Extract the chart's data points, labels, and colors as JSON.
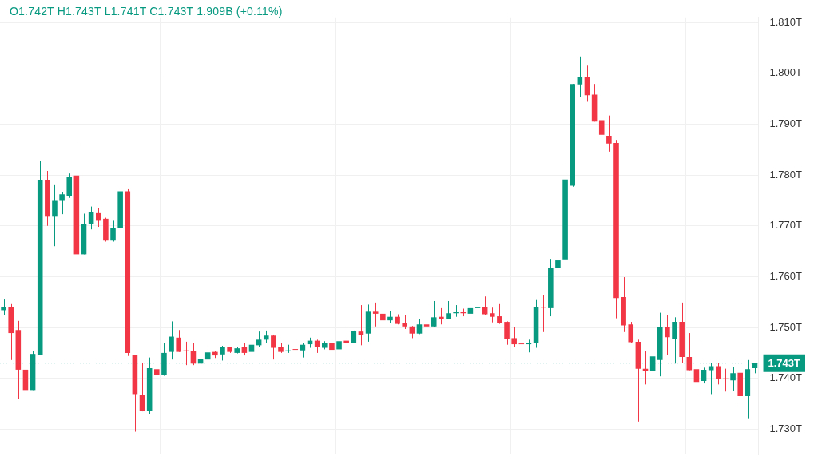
{
  "chart_data": {
    "type": "candlestick",
    "categories": [
      null,
      null,
      null,
      null,
      null,
      null,
      null,
      null,
      null,
      null,
      null,
      null,
      null,
      null,
      null,
      null,
      null,
      null,
      null,
      null,
      null,
      null,
      null,
      null,
      null,
      null,
      null,
      null,
      null,
      null,
      null,
      null,
      null,
      null,
      null,
      null,
      null,
      null,
      null,
      null,
      null,
      null,
      null,
      null,
      null,
      null,
      null,
      null,
      null,
      null,
      null,
      null,
      null,
      null,
      null,
      null,
      null,
      null,
      null,
      null,
      null,
      null,
      null,
      null,
      null,
      null,
      null,
      null,
      null,
      null,
      null,
      null,
      null,
      null,
      null,
      null,
      null,
      null,
      null,
      null,
      null,
      null,
      null,
      null,
      null,
      null,
      null,
      null,
      null,
      null,
      null,
      null,
      null,
      null,
      null,
      null,
      null,
      null,
      null,
      null,
      null,
      null,
      null,
      null
    ],
    "ohlc": [
      [
        1.7534,
        1.7555,
        1.7525,
        1.754
      ],
      [
        1.754,
        1.7546,
        1.7436,
        1.7489
      ],
      [
        1.7495,
        1.7513,
        1.736,
        1.7417
      ],
      [
        1.7417,
        1.7424,
        1.7344,
        1.7377
      ],
      [
        1.7377,
        1.7453,
        1.7377,
        1.7448
      ],
      [
        1.7446,
        1.7828,
        1.7446,
        1.7789
      ],
      [
        1.7789,
        1.7808,
        1.77,
        1.7718
      ],
      [
        1.7718,
        1.778,
        1.766,
        1.7749
      ],
      [
        1.7749,
        1.7767,
        1.7723,
        1.7762
      ],
      [
        1.7758,
        1.7803,
        1.7755,
        1.7797
      ],
      [
        1.7799,
        1.7863,
        1.7631,
        1.7644
      ],
      [
        1.7644,
        1.7724,
        1.7644,
        1.7704
      ],
      [
        1.7703,
        1.7738,
        1.7693,
        1.7727
      ],
      [
        1.7725,
        1.7735,
        1.7698,
        1.771
      ],
      [
        1.7714,
        1.7716,
        1.7669,
        1.7671
      ],
      [
        1.7671,
        1.771,
        1.7669,
        1.7696
      ],
      [
        1.7695,
        1.7771,
        1.7688,
        1.7768
      ],
      [
        1.7768,
        1.7772,
        1.7444,
        1.745
      ],
      [
        1.7446,
        1.7446,
        1.7295,
        1.7369
      ],
      [
        1.7368,
        1.7431,
        1.7335,
        1.7335
      ],
      [
        1.7336,
        1.7441,
        1.7329,
        1.742
      ],
      [
        1.7418,
        1.7426,
        1.7383,
        1.7407
      ],
      [
        1.7407,
        1.747,
        1.7405,
        1.745
      ],
      [
        1.7452,
        1.7512,
        1.7437,
        1.7482
      ],
      [
        1.748,
        1.7495,
        1.7452,
        1.7452
      ],
      [
        1.7455,
        1.7472,
        1.7426,
        1.7453
      ],
      [
        1.7454,
        1.747,
        1.7426,
        1.7429
      ],
      [
        1.7429,
        1.7439,
        1.7407,
        1.7438
      ],
      [
        1.7437,
        1.7456,
        1.7426,
        1.7451
      ],
      [
        1.7452,
        1.7454,
        1.744,
        1.7445
      ],
      [
        1.7447,
        1.7464,
        1.7435,
        1.7461
      ],
      [
        1.7461,
        1.7462,
        1.745,
        1.7452
      ],
      [
        1.745,
        1.7461,
        1.7449,
        1.7459
      ],
      [
        1.7461,
        1.7469,
        1.7445,
        1.745
      ],
      [
        1.7452,
        1.75,
        1.745,
        1.7466
      ],
      [
        1.7465,
        1.7492,
        1.7462,
        1.7476
      ],
      [
        1.7476,
        1.7494,
        1.747,
        1.7484
      ],
      [
        1.7484,
        1.7486,
        1.7437,
        1.746
      ],
      [
        1.7462,
        1.747,
        1.745,
        1.7452
      ],
      [
        1.7453,
        1.7466,
        1.745,
        1.7455
      ],
      [
        1.7457,
        1.7458,
        1.7431,
        1.7456
      ],
      [
        1.7455,
        1.747,
        1.7441,
        1.7466
      ],
      [
        1.7467,
        1.748,
        1.746,
        1.7474
      ],
      [
        1.7474,
        1.7476,
        1.745,
        1.7461
      ],
      [
        1.746,
        1.7473,
        1.7457,
        1.747
      ],
      [
        1.747,
        1.7473,
        1.7453,
        1.7456
      ],
      [
        1.7457,
        1.7474,
        1.7456,
        1.7473
      ],
      [
        1.7474,
        1.7485,
        1.7463,
        1.747
      ],
      [
        1.747,
        1.7494,
        1.747,
        1.7493
      ],
      [
        1.7492,
        1.7544,
        1.7465,
        1.7485
      ],
      [
        1.7488,
        1.7545,
        1.7472,
        1.7531
      ],
      [
        1.7531,
        1.7549,
        1.7502,
        1.7527
      ],
      [
        1.7527,
        1.7544,
        1.751,
        1.7514
      ],
      [
        1.7514,
        1.7533,
        1.7508,
        1.7521
      ],
      [
        1.7521,
        1.7526,
        1.7506,
        1.7507
      ],
      [
        1.7508,
        1.7524,
        1.7497,
        1.7502
      ],
      [
        1.7502,
        1.7503,
        1.7479,
        1.7488
      ],
      [
        1.7488,
        1.7516,
        1.7487,
        1.7506
      ],
      [
        1.7506,
        1.7507,
        1.7491,
        1.7502
      ],
      [
        1.7502,
        1.7552,
        1.7501,
        1.752
      ],
      [
        1.7521,
        1.7538,
        1.7506,
        1.7517
      ],
      [
        1.7517,
        1.7552,
        1.7516,
        1.7528
      ],
      [
        1.7528,
        1.7544,
        1.7521,
        1.753
      ],
      [
        1.753,
        1.7537,
        1.7522,
        1.7528
      ],
      [
        1.7527,
        1.7549,
        1.7522,
        1.7538
      ],
      [
        1.7538,
        1.7568,
        1.7537,
        1.7541
      ],
      [
        1.7541,
        1.7561,
        1.7524,
        1.7526
      ],
      [
        1.7528,
        1.7539,
        1.751,
        1.7521
      ],
      [
        1.7522,
        1.7546,
        1.7507,
        1.7509
      ],
      [
        1.7511,
        1.7512,
        1.7466,
        1.7478
      ],
      [
        1.7479,
        1.7501,
        1.7461,
        1.7467
      ],
      [
        1.7468,
        1.7489,
        1.745,
        1.7467
      ],
      [
        1.7467,
        1.7476,
        1.7451,
        1.747
      ],
      [
        1.747,
        1.7554,
        1.746,
        1.7541
      ],
      [
        1.7541,
        1.7563,
        1.7491,
        1.7539
      ],
      [
        1.7538,
        1.7635,
        1.7522,
        1.7617
      ],
      [
        1.7617,
        1.7648,
        1.7538,
        1.7632
      ],
      [
        1.7634,
        1.7828,
        1.7634,
        1.7791
      ],
      [
        1.7779,
        1.7979,
        1.7777,
        1.7979
      ],
      [
        1.7978,
        1.8033,
        1.7953,
        1.7993
      ],
      [
        1.7993,
        1.8015,
        1.7944,
        1.7957
      ],
      [
        1.7958,
        1.7979,
        1.7905,
        1.7905
      ],
      [
        1.7908,
        1.7923,
        1.7856,
        1.7879
      ],
      [
        1.7877,
        1.7917,
        1.7846,
        1.7862
      ],
      [
        1.7863,
        1.7869,
        1.7518,
        1.7558
      ],
      [
        1.756,
        1.7599,
        1.7491,
        1.7504
      ],
      [
        1.7506,
        1.7511,
        1.747,
        1.7471
      ],
      [
        1.7472,
        1.7476,
        1.7315,
        1.7419
      ],
      [
        1.7419,
        1.7453,
        1.7388,
        1.7414
      ],
      [
        1.7414,
        1.7588,
        1.7404,
        1.7443
      ],
      [
        1.7436,
        1.7529,
        1.7404,
        1.75
      ],
      [
        1.75,
        1.7524,
        1.7446,
        1.7481
      ],
      [
        1.7478,
        1.752,
        1.7429,
        1.7511
      ],
      [
        1.7511,
        1.7549,
        1.743,
        1.7442
      ],
      [
        1.7442,
        1.7489,
        1.7416,
        1.7416
      ],
      [
        1.7418,
        1.7473,
        1.7367,
        1.7393
      ],
      [
        1.7395,
        1.7421,
        1.739,
        1.7417
      ],
      [
        1.7416,
        1.743,
        1.7369,
        1.7424
      ],
      [
        1.7424,
        1.743,
        1.7388,
        1.7398
      ],
      [
        1.74,
        1.7419,
        1.7374,
        1.7398
      ],
      [
        1.7396,
        1.7422,
        1.7376,
        1.741
      ],
      [
        1.7411,
        1.7416,
        1.7349,
        1.7365
      ],
      [
        1.7365,
        1.7436,
        1.732,
        1.7418
      ],
      [
        1.742,
        1.743,
        1.741,
        1.743
      ]
    ],
    "colors": [
      "#089981",
      "#f23645",
      "#f23645",
      "#f23645",
      "#089981",
      "#089981",
      "#f23645",
      "#089981",
      "#089981",
      "#089981",
      "#f23645",
      "#089981",
      "#089981",
      "#f23645",
      "#f23645",
      "#089981",
      "#089981",
      "#f23645",
      "#f23645",
      "#f23645",
      "#089981",
      "#f23645",
      "#089981",
      "#089981",
      "#f23645",
      "#f23645",
      "#f23645",
      "#089981",
      "#089981",
      "#f23645",
      "#089981",
      "#f23645",
      "#089981",
      "#f23645",
      "#089981",
      "#089981",
      "#089981",
      "#f23645",
      "#f23645",
      "#089981",
      "#f23645",
      "#089981",
      "#089981",
      "#f23645",
      "#089981",
      "#f23645",
      "#089981",
      "#f23645",
      "#089981",
      "#f23645",
      "#089981",
      "#f23645",
      "#f23645",
      "#089981",
      "#f23645",
      "#f23645",
      "#f23645",
      "#089981",
      "#f23645",
      "#089981",
      "#f23645",
      "#089981",
      "#089981",
      "#f23645",
      "#089981",
      "#089981",
      "#f23645",
      "#f23645",
      "#f23645",
      "#f23645",
      "#f23645",
      "#f23645",
      "#089981",
      "#089981",
      "#f23645",
      "#089981",
      "#089981",
      "#089981",
      "#089981",
      "#089981",
      "#f23645",
      "#f23645",
      "#f23645",
      "#f23645",
      "#f23645",
      "#f23645",
      "#f23645",
      "#f23645",
      "#f23645",
      "#089981",
      "#089981",
      "#f23645",
      "#089981",
      "#f23645",
      "#f23645",
      "#f23645",
      "#089981",
      "#089981",
      "#f23645",
      "#f23645",
      "#089981",
      "#f23645",
      "#089981",
      "#089981"
    ],
    "ylim": [
      1.725,
      1.811
    ],
    "yticks": [
      {
        "value": 1.73,
        "label": "1.730T"
      },
      {
        "value": 1.74,
        "label": "1.740T"
      },
      {
        "value": 1.75,
        "label": "1.750T"
      },
      {
        "value": 1.76,
        "label": "1.760T"
      },
      {
        "value": 1.77,
        "label": "1.770T"
      },
      {
        "value": 1.78,
        "label": "1.780T"
      },
      {
        "value": 1.79,
        "label": "1.790T"
      },
      {
        "value": 1.8,
        "label": "1.800T"
      },
      {
        "value": 1.81,
        "label": "1.810T"
      }
    ],
    "grid": true,
    "legend": false,
    "ref_lines": [
      {
        "axis": "y",
        "value": 1.743,
        "label": "1.743T",
        "color": "#089981",
        "line_style": "dotted"
      }
    ],
    "annotations": [
      "O1.742T H1.743T L1.741T C1.743T 1.909B (+0.11%)"
    ]
  }
}
